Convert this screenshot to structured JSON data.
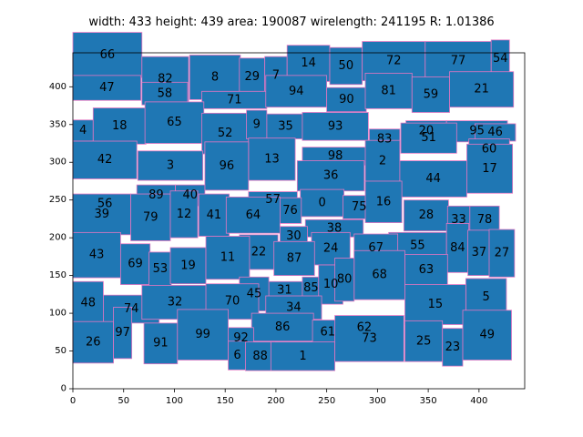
{
  "chart_data": {
    "type": "floorplan",
    "title": "width: 433  height: 439  area: 190087  wirelength: 241195  R: 1.01386",
    "xlim": [
      0,
      445
    ],
    "ylim": [
      0,
      445
    ],
    "xticks": [
      0,
      50,
      100,
      150,
      200,
      250,
      300,
      350,
      400
    ],
    "yticks": [
      0,
      50,
      100,
      150,
      200,
      250,
      300,
      350,
      400
    ],
    "colors": {
      "block_fill": "#1f77b4",
      "block_edge": "#e377c2"
    },
    "blocks": [
      {
        "id": "66",
        "x": 0,
        "y": 412,
        "w": 68,
        "h": 60
      },
      {
        "id": "82",
        "x": 68,
        "y": 380,
        "w": 46,
        "h": 60
      },
      {
        "id": "8",
        "x": 115,
        "y": 383,
        "w": 50,
        "h": 59
      },
      {
        "id": "29",
        "x": 164,
        "y": 388,
        "w": 25,
        "h": 50
      },
      {
        "id": "7",
        "x": 189,
        "y": 390,
        "w": 22,
        "h": 50
      },
      {
        "id": "14",
        "x": 211,
        "y": 407,
        "w": 42,
        "h": 48
      },
      {
        "id": "50",
        "x": 253,
        "y": 403,
        "w": 32,
        "h": 49
      },
      {
        "id": "72",
        "x": 285,
        "y": 408,
        "w": 62,
        "h": 52
      },
      {
        "id": "77",
        "x": 347,
        "y": 408,
        "w": 65,
        "h": 52
      },
      {
        "id": "54",
        "x": 412,
        "y": 412,
        "w": 18,
        "h": 50
      },
      {
        "id": "47",
        "x": 0,
        "y": 382,
        "w": 67,
        "h": 33
      },
      {
        "id": "58",
        "x": 68,
        "y": 376,
        "w": 45,
        "h": 30
      },
      {
        "id": "71",
        "x": 127,
        "y": 371,
        "w": 64,
        "h": 23
      },
      {
        "id": "94",
        "x": 190,
        "y": 373,
        "w": 60,
        "h": 42
      },
      {
        "id": "90",
        "x": 250,
        "y": 367,
        "w": 39,
        "h": 32
      },
      {
        "id": "81",
        "x": 288,
        "y": 371,
        "w": 46,
        "h": 47
      },
      {
        "id": "59",
        "x": 334,
        "y": 366,
        "w": 37,
        "h": 47
      },
      {
        "id": "21",
        "x": 371,
        "y": 373,
        "w": 63,
        "h": 47
      },
      {
        "id": "4",
        "x": 0,
        "y": 328,
        "w": 20,
        "h": 28
      },
      {
        "id": "18",
        "x": 20,
        "y": 324,
        "w": 52,
        "h": 48
      },
      {
        "id": "65",
        "x": 71,
        "y": 325,
        "w": 58,
        "h": 55
      },
      {
        "id": "52",
        "x": 127,
        "y": 311,
        "w": 46,
        "h": 54
      },
      {
        "id": "9",
        "x": 171,
        "y": 331,
        "w": 20,
        "h": 38
      },
      {
        "id": "35",
        "x": 191,
        "y": 331,
        "w": 37,
        "h": 33
      },
      {
        "id": "93",
        "x": 226,
        "y": 329,
        "w": 65,
        "h": 37
      },
      {
        "id": "20",
        "x": 328,
        "y": 327,
        "w": 40,
        "h": 28
      },
      {
        "id": "95",
        "x": 368,
        "y": 327,
        "w": 60,
        "h": 28
      },
      {
        "id": "46",
        "x": 396,
        "y": 328,
        "w": 40,
        "h": 23
      },
      {
        "id": "83",
        "x": 292,
        "y": 317,
        "w": 30,
        "h": 27
      },
      {
        "id": "51",
        "x": 323,
        "y": 312,
        "w": 55,
        "h": 40
      },
      {
        "id": "60",
        "x": 390,
        "y": 303,
        "w": 40,
        "h": 28
      },
      {
        "id": "98",
        "x": 226,
        "y": 296,
        "w": 65,
        "h": 24
      },
      {
        "id": "42",
        "x": 0,
        "y": 278,
        "w": 63,
        "h": 50
      },
      {
        "id": "3",
        "x": 64,
        "y": 276,
        "w": 64,
        "h": 39
      },
      {
        "id": "13",
        "x": 173,
        "y": 276,
        "w": 46,
        "h": 56
      },
      {
        "id": "2",
        "x": 288,
        "y": 274,
        "w": 34,
        "h": 55
      },
      {
        "id": "96",
        "x": 130,
        "y": 263,
        "w": 43,
        "h": 64
      },
      {
        "id": "36",
        "x": 221,
        "y": 262,
        "w": 66,
        "h": 40
      },
      {
        "id": "44",
        "x": 322,
        "y": 254,
        "w": 66,
        "h": 48
      },
      {
        "id": "17",
        "x": 388,
        "y": 259,
        "w": 45,
        "h": 65
      },
      {
        "id": "89",
        "x": 63,
        "y": 242,
        "w": 38,
        "h": 28
      },
      {
        "id": "40",
        "x": 101,
        "y": 242,
        "w": 29,
        "h": 28
      },
      {
        "id": "56",
        "x": 0,
        "y": 236,
        "w": 63,
        "h": 18
      },
      {
        "id": "57",
        "x": 173,
        "y": 239,
        "w": 48,
        "h": 22
      },
      {
        "id": "0",
        "x": 224,
        "y": 228,
        "w": 43,
        "h": 36
      },
      {
        "id": "75",
        "x": 266,
        "y": 225,
        "w": 32,
        "h": 31
      },
      {
        "id": "76",
        "x": 203,
        "y": 219,
        "w": 22,
        "h": 34
      },
      {
        "id": "16",
        "x": 288,
        "y": 220,
        "w": 36,
        "h": 55
      },
      {
        "id": "39",
        "x": 0,
        "y": 204,
        "w": 57,
        "h": 54
      },
      {
        "id": "79",
        "x": 57,
        "y": 196,
        "w": 39,
        "h": 62
      },
      {
        "id": "12",
        "x": 96,
        "y": 200,
        "w": 27,
        "h": 62
      },
      {
        "id": "41",
        "x": 124,
        "y": 202,
        "w": 30,
        "h": 56
      },
      {
        "id": "64",
        "x": 151,
        "y": 206,
        "w": 53,
        "h": 48
      },
      {
        "id": "28",
        "x": 326,
        "y": 209,
        "w": 44,
        "h": 41
      },
      {
        "id": "33",
        "x": 369,
        "y": 205,
        "w": 22,
        "h": 37
      },
      {
        "id": "78",
        "x": 391,
        "y": 205,
        "w": 29,
        "h": 37
      },
      {
        "id": "38",
        "x": 229,
        "y": 201,
        "w": 57,
        "h": 23
      },
      {
        "id": "30",
        "x": 204,
        "y": 189,
        "w": 27,
        "h": 26
      },
      {
        "id": "55",
        "x": 311,
        "y": 172,
        "w": 57,
        "h": 35
      },
      {
        "id": "67",
        "x": 277,
        "y": 168,
        "w": 43,
        "h": 37
      },
      {
        "id": "24",
        "x": 235,
        "y": 164,
        "w": 38,
        "h": 43
      },
      {
        "id": "22",
        "x": 164,
        "y": 158,
        "w": 38,
        "h": 46
      },
      {
        "id": "87",
        "x": 198,
        "y": 150,
        "w": 40,
        "h": 45
      },
      {
        "id": "43",
        "x": 0,
        "y": 147,
        "w": 47,
        "h": 60
      },
      {
        "id": "69",
        "x": 47,
        "y": 138,
        "w": 29,
        "h": 54
      },
      {
        "id": "53",
        "x": 75,
        "y": 136,
        "w": 22,
        "h": 45
      },
      {
        "id": "19",
        "x": 96,
        "y": 139,
        "w": 35,
        "h": 48
      },
      {
        "id": "11",
        "x": 131,
        "y": 145,
        "w": 43,
        "h": 57
      },
      {
        "id": "84",
        "x": 368,
        "y": 154,
        "w": 22,
        "h": 65
      },
      {
        "id": "37",
        "x": 389,
        "y": 150,
        "w": 22,
        "h": 60
      },
      {
        "id": "27",
        "x": 410,
        "y": 148,
        "w": 25,
        "h": 63
      },
      {
        "id": "63",
        "x": 327,
        "y": 137,
        "w": 42,
        "h": 41
      },
      {
        "id": "68",
        "x": 277,
        "y": 118,
        "w": 50,
        "h": 65
      },
      {
        "id": "31",
        "x": 190,
        "y": 118,
        "w": 37,
        "h": 24
      },
      {
        "id": "85",
        "x": 226,
        "y": 118,
        "w": 17,
        "h": 30
      },
      {
        "id": "10",
        "x": 242,
        "y": 112,
        "w": 24,
        "h": 52
      },
      {
        "id": "80",
        "x": 258,
        "y": 116,
        "w": 19,
        "h": 57
      },
      {
        "id": "45",
        "x": 164,
        "y": 103,
        "w": 29,
        "h": 45
      },
      {
        "id": "48",
        "x": 0,
        "y": 85,
        "w": 30,
        "h": 57
      },
      {
        "id": "74",
        "x": 30,
        "y": 87,
        "w": 55,
        "h": 37
      },
      {
        "id": "32",
        "x": 68,
        "y": 92,
        "w": 65,
        "h": 45
      },
      {
        "id": "70",
        "x": 131,
        "y": 92,
        "w": 52,
        "h": 47
      },
      {
        "id": "34",
        "x": 190,
        "y": 92,
        "w": 55,
        "h": 31
      },
      {
        "id": "5",
        "x": 387,
        "y": 96,
        "w": 40,
        "h": 50
      },
      {
        "id": "15",
        "x": 327,
        "y": 85,
        "w": 60,
        "h": 53
      },
      {
        "id": "62",
        "x": 258,
        "y": 72,
        "w": 58,
        "h": 18
      },
      {
        "id": "86",
        "x": 176,
        "y": 63,
        "w": 61,
        "h": 37
      },
      {
        "id": "61",
        "x": 236,
        "y": 59,
        "w": 30,
        "h": 32
      },
      {
        "id": "92",
        "x": 153,
        "y": 53,
        "w": 25,
        "h": 28
      },
      {
        "id": "26",
        "x": 0,
        "y": 34,
        "w": 40,
        "h": 55
      },
      {
        "id": "97",
        "x": 40,
        "y": 40,
        "w": 18,
        "h": 68
      },
      {
        "id": "91",
        "x": 70,
        "y": 33,
        "w": 33,
        "h": 54
      },
      {
        "id": "99",
        "x": 103,
        "y": 38,
        "w": 50,
        "h": 67
      },
      {
        "id": "6",
        "x": 153,
        "y": 25,
        "w": 18,
        "h": 38
      },
      {
        "id": "88",
        "x": 170,
        "y": 24,
        "w": 29,
        "h": 38
      },
      {
        "id": "1",
        "x": 195,
        "y": 24,
        "w": 63,
        "h": 38
      },
      {
        "id": "73",
        "x": 258,
        "y": 36,
        "w": 68,
        "h": 61
      },
      {
        "id": "25",
        "x": 327,
        "y": 36,
        "w": 37,
        "h": 54
      },
      {
        "id": "23",
        "x": 364,
        "y": 30,
        "w": 20,
        "h": 50
      },
      {
        "id": "49",
        "x": 384,
        "y": 38,
        "w": 48,
        "h": 66
      }
    ]
  }
}
